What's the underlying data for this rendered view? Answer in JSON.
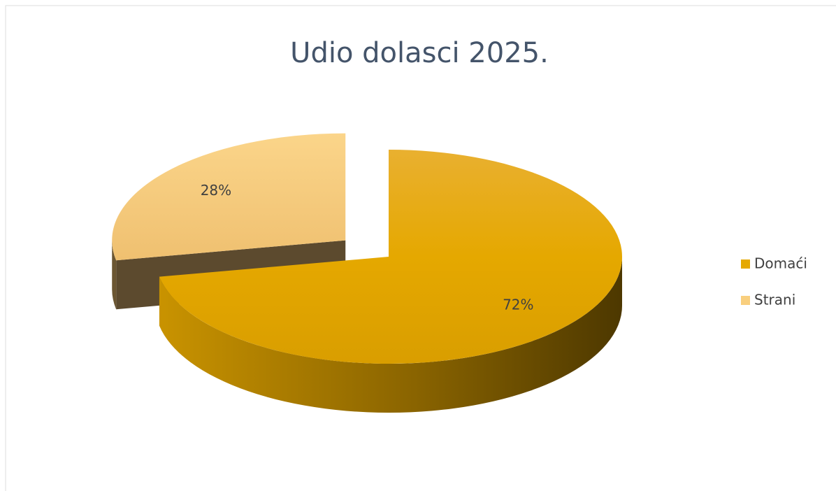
{
  "chart_data": {
    "type": "pie",
    "title": "Udio dolasci 2025.",
    "categories": [
      "Domaći",
      "Strani"
    ],
    "values": [
      72,
      28
    ],
    "value_labels": [
      "72%",
      "28%"
    ],
    "colors": [
      "#e5a800",
      "#f9cf7e"
    ],
    "legend": "right"
  }
}
